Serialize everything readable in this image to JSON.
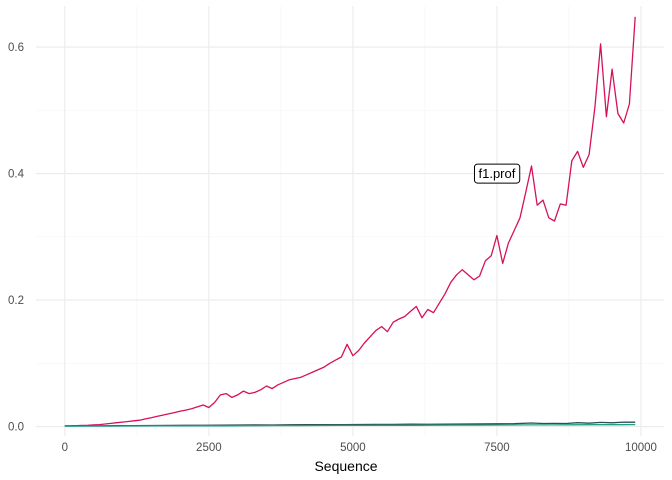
{
  "chart_data": {
    "type": "line",
    "title": "",
    "xlabel": "Sequence",
    "ylabel": "",
    "xlim": [
      -500,
      10400
    ],
    "ylim": [
      -0.015,
      0.665
    ],
    "x_ticks": [
      0,
      2500,
      5000,
      7500,
      10000
    ],
    "x_tick_labels": [
      "0",
      "2500",
      "5000",
      "7500",
      "10000"
    ],
    "y_ticks": [
      0.0,
      0.2,
      0.4,
      0.6
    ],
    "y_tick_labels": [
      "0.0",
      "0.2",
      "0.4",
      "0.6"
    ],
    "grid": true,
    "legend": "none",
    "series": [
      {
        "name": "f1.prof",
        "color": "#d6115b",
        "x": [
          0,
          100,
          200,
          300,
          400,
          500,
          600,
          700,
          800,
          900,
          1000,
          1100,
          1200,
          1300,
          1400,
          1500,
          1600,
          1700,
          1800,
          1900,
          2000,
          2100,
          2200,
          2300,
          2400,
          2500,
          2600,
          2700,
          2800,
          2900,
          3000,
          3100,
          3200,
          3300,
          3400,
          3500,
          3600,
          3700,
          3800,
          3900,
          4000,
          4100,
          4200,
          4300,
          4400,
          4500,
          4600,
          4700,
          4800,
          4900,
          5000,
          5100,
          5200,
          5300,
          5400,
          5500,
          5600,
          5700,
          5800,
          5900,
          6000,
          6100,
          6200,
          6300,
          6400,
          6500,
          6600,
          6700,
          6800,
          6900,
          7000,
          7100,
          7200,
          7300,
          7400,
          7500,
          7600,
          7700,
          7800,
          7900,
          8000,
          8100,
          8200,
          8300,
          8400,
          8500,
          8600,
          8700,
          8800,
          8900,
          9000,
          9100,
          9200,
          9300,
          9400,
          9500,
          9600,
          9700,
          9800,
          9900
        ],
        "y": [
          0.001,
          0.0012,
          0.0015,
          0.0018,
          0.002,
          0.0025,
          0.003,
          0.004,
          0.005,
          0.006,
          0.007,
          0.008,
          0.009,
          0.01,
          0.012,
          0.014,
          0.016,
          0.018,
          0.02,
          0.022,
          0.024,
          0.026,
          0.028,
          0.031,
          0.034,
          0.03,
          0.038,
          0.05,
          0.052,
          0.046,
          0.05,
          0.056,
          0.052,
          0.054,
          0.058,
          0.064,
          0.06,
          0.066,
          0.07,
          0.074,
          0.076,
          0.078,
          0.082,
          0.086,
          0.09,
          0.094,
          0.1,
          0.105,
          0.11,
          0.13,
          0.112,
          0.12,
          0.132,
          0.142,
          0.152,
          0.158,
          0.15,
          0.165,
          0.17,
          0.174,
          0.182,
          0.19,
          0.172,
          0.185,
          0.18,
          0.195,
          0.21,
          0.228,
          0.24,
          0.248,
          0.24,
          0.232,
          0.238,
          0.262,
          0.27,
          0.302,
          0.258,
          0.29,
          0.31,
          0.33,
          0.37,
          0.412,
          0.35,
          0.358,
          0.33,
          0.325,
          0.352,
          0.35,
          0.42,
          0.435,
          0.41,
          0.43,
          0.505,
          0.605,
          0.49,
          0.565,
          0.495,
          0.48,
          0.51,
          0.648
        ]
      },
      {
        "name": "",
        "color": "#2f4f4f",
        "x": [
          0,
          300,
          600,
          900,
          1200,
          1500,
          1800,
          2100,
          2400,
          2700,
          3000,
          3300,
          3600,
          3900,
          4200,
          4500,
          4800,
          5100,
          5400,
          5700,
          6000,
          6300,
          6600,
          6900,
          7200,
          7500,
          7800,
          8100,
          8300,
          8500,
          8700,
          8900,
          9100,
          9300,
          9500,
          9700,
          9900
        ],
        "y": [
          0.001,
          0.001,
          0.0012,
          0.0013,
          0.0015,
          0.0016,
          0.0018,
          0.002,
          0.002,
          0.0022,
          0.0024,
          0.0025,
          0.0024,
          0.0027,
          0.0028,
          0.003,
          0.0029,
          0.0032,
          0.0034,
          0.0033,
          0.0036,
          0.0035,
          0.0038,
          0.004,
          0.0041,
          0.0043,
          0.0045,
          0.0055,
          0.0048,
          0.005,
          0.0047,
          0.006,
          0.0052,
          0.0065,
          0.0058,
          0.007,
          0.0068
        ]
      },
      {
        "name": "",
        "color": "#1f9e89",
        "x": [
          0,
          400,
          800,
          1200,
          1600,
          2000,
          2400,
          2800,
          3200,
          3600,
          4000,
          4400,
          4800,
          5200,
          5600,
          6000,
          6400,
          6800,
          7200,
          7600,
          8000,
          8400,
          8800,
          9200,
          9600,
          9900
        ],
        "y": [
          0.0005,
          0.0006,
          0.0007,
          0.0008,
          0.0009,
          0.001,
          0.0011,
          0.0012,
          0.0013,
          0.0014,
          0.0015,
          0.0016,
          0.0017,
          0.0018,
          0.0019,
          0.002,
          0.0021,
          0.0022,
          0.0023,
          0.0024,
          0.0025,
          0.0026,
          0.0027,
          0.0028,
          0.0029,
          0.003
        ]
      }
    ],
    "annotations": [
      {
        "text": "f1.prof",
        "x": 7500,
        "y": 0.4
      }
    ]
  }
}
